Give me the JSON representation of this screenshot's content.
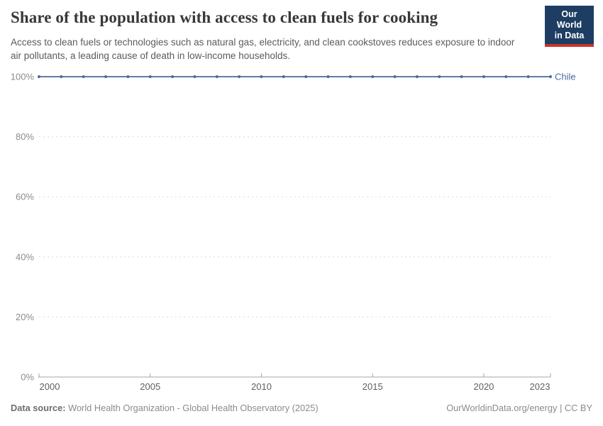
{
  "header": {
    "title": "Share of the population with access to clean fuels for cooking",
    "subtitle": "Access to clean fuels or technologies such as natural gas, electricity, and clean cookstoves reduces exposure to indoor air pollutants, a leading cause of death in low-income households.",
    "logo": {
      "line1": "Our World",
      "line2": "in Data"
    }
  },
  "chart_data": {
    "type": "line",
    "title": "Share of the population with access to clean fuels for cooking",
    "xlabel": "",
    "ylabel": "",
    "xlim": [
      2000,
      2023
    ],
    "ylim": [
      0,
      100
    ],
    "xticks": [
      2000,
      2005,
      2010,
      2015,
      2020,
      2023
    ],
    "yticks": [
      0,
      20,
      40,
      60,
      80,
      100
    ],
    "ytick_suffix": "%",
    "grid": "horizontal-dashed",
    "legend_position": "end-of-line",
    "x": [
      2000,
      2001,
      2002,
      2003,
      2004,
      2005,
      2006,
      2007,
      2008,
      2009,
      2010,
      2011,
      2012,
      2013,
      2014,
      2015,
      2016,
      2017,
      2018,
      2019,
      2020,
      2021,
      2022,
      2023
    ],
    "series": [
      {
        "name": "Chile",
        "color": "#4c6a9c",
        "values": [
          100,
          100,
          100,
          100,
          100,
          100,
          100,
          100,
          100,
          100,
          100,
          100,
          100,
          100,
          100,
          100,
          100,
          100,
          100,
          100,
          100,
          100,
          100,
          100
        ]
      }
    ]
  },
  "footer": {
    "source_label": "Data source:",
    "source_text": "World Health Organization - Global Health Observatory (2025)",
    "attribution": "OurWorldinData.org/energy | CC BY"
  },
  "colors": {
    "title": "#383838",
    "subtitle": "#5b5b5b",
    "y_tick_label": "#8b8b8b",
    "x_tick_label": "#5f5f5f",
    "gridline": "#dcdcdc",
    "axis": "#a5a5a5",
    "logo_bg": "#1d3d63",
    "logo_bar": "#c5362c"
  }
}
